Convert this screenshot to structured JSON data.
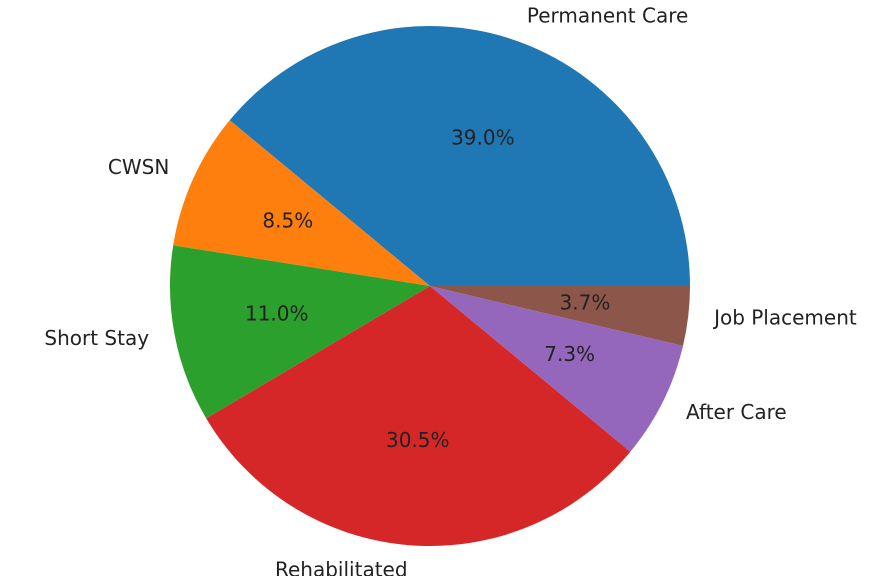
{
  "chart_data": {
    "type": "pie",
    "categories": [
      "Permanent Care",
      "CWSN",
      "Short Stay",
      "Rehabilitated",
      "After Care",
      "Job Placement"
    ],
    "values": [
      39.0,
      8.5,
      11.0,
      30.5,
      7.3,
      3.7
    ],
    "value_labels": [
      "39.0%",
      "8.5%",
      "11.0%",
      "30.5%",
      "7.3%",
      "3.7%"
    ],
    "colors": [
      "#1f77b4",
      "#ff7f0e",
      "#2ca02c",
      "#d62728",
      "#9467bd",
      "#8c564b"
    ]
  }
}
